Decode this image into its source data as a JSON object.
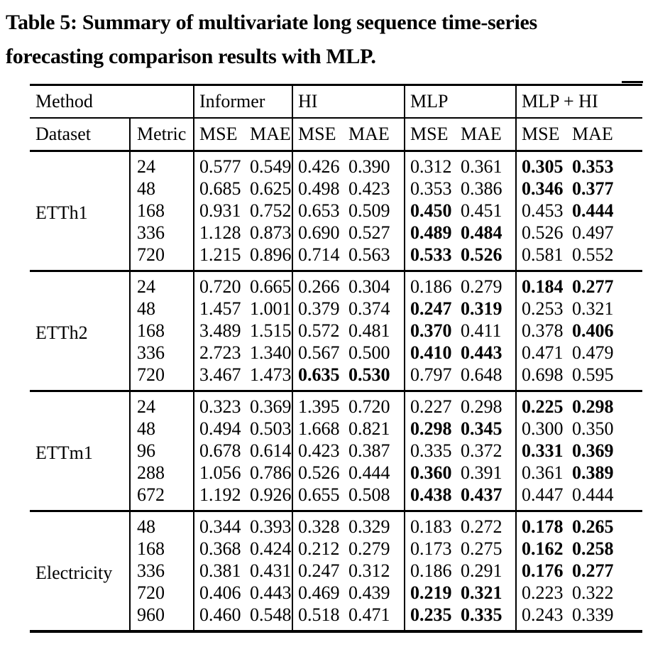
{
  "title": {
    "line1": "Table 5: Summary of multivariate long sequence time-series",
    "line2": "forecasting comparison results with MLP."
  },
  "colors": {
    "text": "#000000",
    "background": "#ffffff",
    "rule": "#000000"
  },
  "table": {
    "header": {
      "method_label": "Method",
      "method_groups": [
        "Informer",
        "HI",
        "MLP",
        "MLP + HI"
      ],
      "dataset_label": "Dataset",
      "metric_label": "Metric",
      "metric_cols": [
        "MSE",
        "MAE"
      ]
    },
    "blocks": [
      {
        "dataset": "ETTh1",
        "rows": [
          {
            "metric": "24",
            "values": [
              "0.577",
              "0.549",
              "0.426",
              "0.390",
              "0.312",
              "0.361",
              "0.305",
              "0.353"
            ],
            "bold": [
              0,
              0,
              0,
              0,
              0,
              0,
              1,
              1
            ]
          },
          {
            "metric": "48",
            "values": [
              "0.685",
              "0.625",
              "0.498",
              "0.423",
              "0.353",
              "0.386",
              "0.346",
              "0.377"
            ],
            "bold": [
              0,
              0,
              0,
              0,
              0,
              0,
              1,
              1
            ]
          },
          {
            "metric": "168",
            "values": [
              "0.931",
              "0.752",
              "0.653",
              "0.509",
              "0.450",
              "0.451",
              "0.453",
              "0.444"
            ],
            "bold": [
              0,
              0,
              0,
              0,
              1,
              0,
              0,
              1
            ]
          },
          {
            "metric": "336",
            "values": [
              "1.128",
              "0.873",
              "0.690",
              "0.527",
              "0.489",
              "0.484",
              "0.526",
              "0.497"
            ],
            "bold": [
              0,
              0,
              0,
              0,
              1,
              1,
              0,
              0
            ]
          },
          {
            "metric": "720",
            "values": [
              "1.215",
              "0.896",
              "0.714",
              "0.563",
              "0.533",
              "0.526",
              "0.581",
              "0.552"
            ],
            "bold": [
              0,
              0,
              0,
              0,
              1,
              1,
              0,
              0
            ]
          }
        ]
      },
      {
        "dataset": "ETTh2",
        "rows": [
          {
            "metric": "24",
            "values": [
              "0.720",
              "0.665",
              "0.266",
              "0.304",
              "0.186",
              "0.279",
              "0.184",
              "0.277"
            ],
            "bold": [
              0,
              0,
              0,
              0,
              0,
              0,
              1,
              1
            ]
          },
          {
            "metric": "48",
            "values": [
              "1.457",
              "1.001",
              "0.379",
              "0.374",
              "0.247",
              "0.319",
              "0.253",
              "0.321"
            ],
            "bold": [
              0,
              0,
              0,
              0,
              1,
              1,
              0,
              0
            ]
          },
          {
            "metric": "168",
            "values": [
              "3.489",
              "1.515",
              "0.572",
              "0.481",
              "0.370",
              "0.411",
              "0.378",
              "0.406"
            ],
            "bold": [
              0,
              0,
              0,
              0,
              1,
              0,
              0,
              1
            ]
          },
          {
            "metric": "336",
            "values": [
              "2.723",
              "1.340",
              "0.567",
              "0.500",
              "0.410",
              "0.443",
              "0.471",
              "0.479"
            ],
            "bold": [
              0,
              0,
              0,
              0,
              1,
              1,
              0,
              0
            ]
          },
          {
            "metric": "720",
            "values": [
              "3.467",
              "1.473",
              "0.635",
              "0.530",
              "0.797",
              "0.648",
              "0.698",
              "0.595"
            ],
            "bold": [
              0,
              0,
              1,
              1,
              0,
              0,
              0,
              0
            ]
          }
        ]
      },
      {
        "dataset": "ETTm1",
        "rows": [
          {
            "metric": "24",
            "values": [
              "0.323",
              "0.369",
              "1.395",
              "0.720",
              "0.227",
              "0.298",
              "0.225",
              "0.298"
            ],
            "bold": [
              0,
              0,
              0,
              0,
              0,
              0,
              1,
              1
            ]
          },
          {
            "metric": "48",
            "values": [
              "0.494",
              "0.503",
              "1.668",
              "0.821",
              "0.298",
              "0.345",
              "0.300",
              "0.350"
            ],
            "bold": [
              0,
              0,
              0,
              0,
              1,
              1,
              0,
              0
            ]
          },
          {
            "metric": "96",
            "values": [
              "0.678",
              "0.614",
              "0.423",
              "0.387",
              "0.335",
              "0.372",
              "0.331",
              "0.369"
            ],
            "bold": [
              0,
              0,
              0,
              0,
              0,
              0,
              1,
              1
            ]
          },
          {
            "metric": "288",
            "values": [
              "1.056",
              "0.786",
              "0.526",
              "0.444",
              "0.360",
              "0.391",
              "0.361",
              "0.389"
            ],
            "bold": [
              0,
              0,
              0,
              0,
              1,
              0,
              0,
              1
            ]
          },
          {
            "metric": "672",
            "values": [
              "1.192",
              "0.926",
              "0.655",
              "0.508",
              "0.438",
              "0.437",
              "0.447",
              "0.444"
            ],
            "bold": [
              0,
              0,
              0,
              0,
              1,
              1,
              0,
              0
            ]
          }
        ]
      },
      {
        "dataset": "Electricity",
        "rows": [
          {
            "metric": "48",
            "values": [
              "0.344",
              "0.393",
              "0.328",
              "0.329",
              "0.183",
              "0.272",
              "0.178",
              "0.265"
            ],
            "bold": [
              0,
              0,
              0,
              0,
              0,
              0,
              1,
              1
            ]
          },
          {
            "metric": "168",
            "values": [
              "0.368",
              "0.424",
              "0.212",
              "0.279",
              "0.173",
              "0.275",
              "0.162",
              "0.258"
            ],
            "bold": [
              0,
              0,
              0,
              0,
              0,
              0,
              1,
              1
            ]
          },
          {
            "metric": "336",
            "values": [
              "0.381",
              "0.431",
              "0.247",
              "0.312",
              "0.186",
              "0.291",
              "0.176",
              "0.277"
            ],
            "bold": [
              0,
              0,
              0,
              0,
              0,
              0,
              1,
              1
            ]
          },
          {
            "metric": "720",
            "values": [
              "0.406",
              "0.443",
              "0.469",
              "0.439",
              "0.219",
              "0.321",
              "0.223",
              "0.322"
            ],
            "bold": [
              0,
              0,
              0,
              0,
              1,
              1,
              0,
              0
            ]
          },
          {
            "metric": "960",
            "values": [
              "0.460",
              "0.548",
              "0.518",
              "0.471",
              "0.235",
              "0.335",
              "0.243",
              "0.339"
            ],
            "bold": [
              0,
              0,
              0,
              0,
              1,
              1,
              0,
              0
            ]
          }
        ]
      }
    ]
  }
}
